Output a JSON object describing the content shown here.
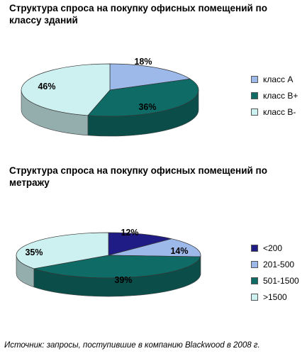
{
  "colors": {
    "class_a": "#9db9ea",
    "class_b_plus": "#0f6b66",
    "class_b_minus": "#cdf0f0",
    "lt200": "#1f1c86",
    "r201_500": "#9db9ea",
    "r501_1500": "#0f6b66",
    "gt1500": "#cdf0f0"
  },
  "chart_data": [
    {
      "type": "pie",
      "title": "Структура спроса на покупку офисных помещений по классу зданий",
      "categories": [
        "класс А",
        "класс В+",
        "класс В-"
      ],
      "values": [
        18,
        36,
        46
      ],
      "labels": [
        "18%",
        "36%",
        "46%"
      ],
      "legend_position": "right"
    },
    {
      "type": "pie",
      "title": "Структура спроса на покупку офисных помещений по метражу",
      "categories": [
        "<200",
        "201-500",
        "501-1500",
        ">1500"
      ],
      "values": [
        12,
        14,
        39,
        35
      ],
      "labels": [
        "12%",
        "14%",
        "39%",
        "35%"
      ],
      "legend_position": "right"
    }
  ],
  "source": "Источник: запросы, поступившие в компанию Blackwood в 2008 г."
}
